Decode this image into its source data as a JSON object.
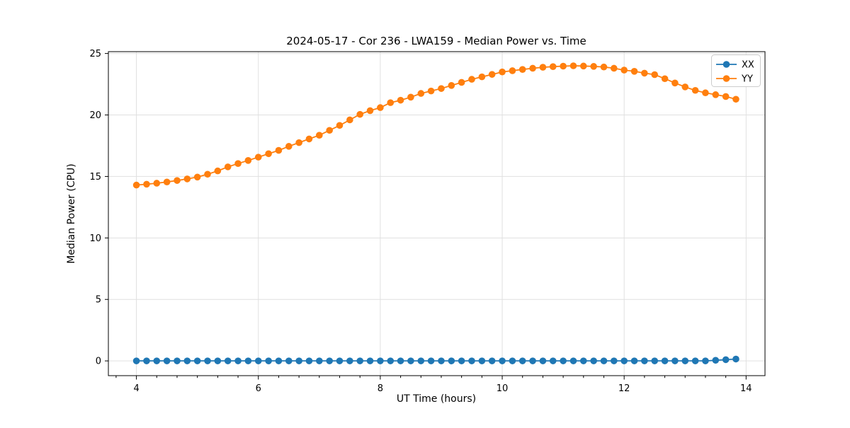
{
  "chart_data": {
    "type": "line",
    "title": "2024-05-17 - Cor 236 - LWA159 - Median Power vs. Time",
    "xlabel": "UT Time (hours)",
    "ylabel": "Median Power (CPU)",
    "xlim": [
      3.54,
      14.31
    ],
    "ylim": [
      -1.2,
      25.15
    ],
    "xticks": [
      4,
      6,
      8,
      10,
      12,
      14
    ],
    "yticks": [
      0,
      5,
      10,
      15,
      20,
      25
    ],
    "minor_xtick_step": 0.3333,
    "grid": true,
    "grid_color": "#e0e0e0",
    "legend": {
      "position": "upper right",
      "entries": [
        "XX",
        "YY"
      ]
    },
    "x": [
      4.0,
      4.167,
      4.333,
      4.5,
      4.667,
      4.833,
      5.0,
      5.167,
      5.333,
      5.5,
      5.667,
      5.833,
      6.0,
      6.167,
      6.333,
      6.5,
      6.667,
      6.833,
      7.0,
      7.167,
      7.333,
      7.5,
      7.667,
      7.833,
      8.0,
      8.167,
      8.333,
      8.5,
      8.667,
      8.833,
      9.0,
      9.167,
      9.333,
      9.5,
      9.667,
      9.833,
      10.0,
      10.167,
      10.333,
      10.5,
      10.667,
      10.833,
      11.0,
      11.167,
      11.333,
      11.5,
      11.667,
      11.833,
      12.0,
      12.167,
      12.333,
      12.5,
      12.667,
      12.833,
      13.0,
      13.167,
      13.333,
      13.5,
      13.667,
      13.833
    ],
    "series": [
      {
        "name": "XX",
        "color": "#1f77b4",
        "values": [
          0.0,
          0.0,
          0.0,
          0.0,
          0.0,
          0.0,
          0.0,
          0.0,
          0.0,
          0.0,
          0.0,
          0.0,
          0.0,
          0.0,
          0.0,
          0.0,
          0.0,
          0.0,
          0.0,
          0.0,
          0.0,
          0.0,
          0.0,
          0.0,
          0.0,
          0.0,
          0.0,
          0.0,
          0.0,
          0.0,
          0.0,
          0.0,
          0.0,
          0.0,
          0.0,
          0.0,
          0.0,
          0.0,
          0.0,
          0.0,
          0.0,
          0.0,
          0.0,
          0.0,
          0.0,
          0.0,
          0.0,
          0.0,
          0.0,
          0.0,
          0.0,
          0.0,
          0.0,
          0.0,
          0.0,
          0.0,
          0.0,
          0.05,
          0.1,
          0.15
        ]
      },
      {
        "name": "YY",
        "color": "#ff7f0e",
        "values": [
          14.3,
          14.37,
          14.45,
          14.55,
          14.67,
          14.8,
          14.95,
          15.18,
          15.45,
          15.78,
          16.05,
          16.3,
          16.57,
          16.85,
          17.12,
          17.45,
          17.75,
          18.05,
          18.35,
          18.75,
          19.15,
          19.6,
          20.05,
          20.35,
          20.6,
          21.0,
          21.2,
          21.45,
          21.75,
          21.95,
          22.15,
          22.4,
          22.65,
          22.9,
          23.1,
          23.3,
          23.5,
          23.6,
          23.7,
          23.8,
          23.88,
          23.93,
          23.97,
          24.0,
          23.98,
          23.95,
          23.9,
          23.8,
          23.65,
          23.55,
          23.4,
          23.28,
          22.95,
          22.6,
          22.28,
          22.0,
          21.8,
          21.65,
          21.5,
          21.28
        ]
      }
    ]
  }
}
